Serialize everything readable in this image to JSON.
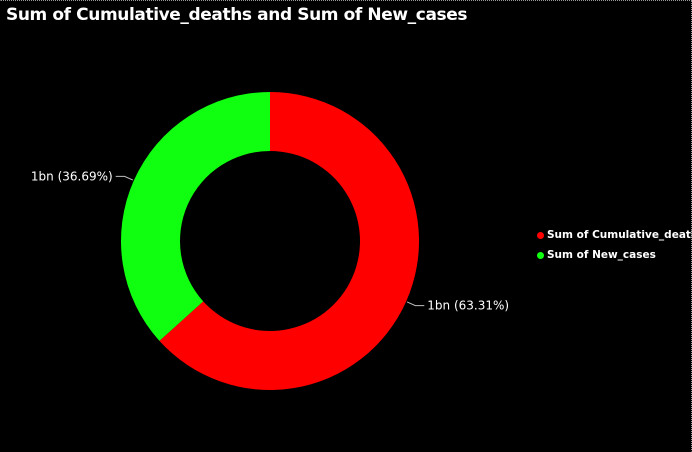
{
  "chart_data": {
    "type": "pie",
    "variant": "donut",
    "title": "Sum of Cumulative_deaths and Sum of New_cases",
    "series": [
      {
        "name": "Sum of Cumulative_deaths",
        "percent": 63.31,
        "label": "1bn (63.31%)",
        "color": "#ff0000"
      },
      {
        "name": "Sum of New_cases",
        "percent": 36.69,
        "label": "1bn (36.69%)",
        "color": "#10ff10"
      }
    ],
    "legend_position": "right"
  },
  "colors": {
    "background": "#000000",
    "text": "#ffffff",
    "leader_line": "#bfbfbf"
  }
}
